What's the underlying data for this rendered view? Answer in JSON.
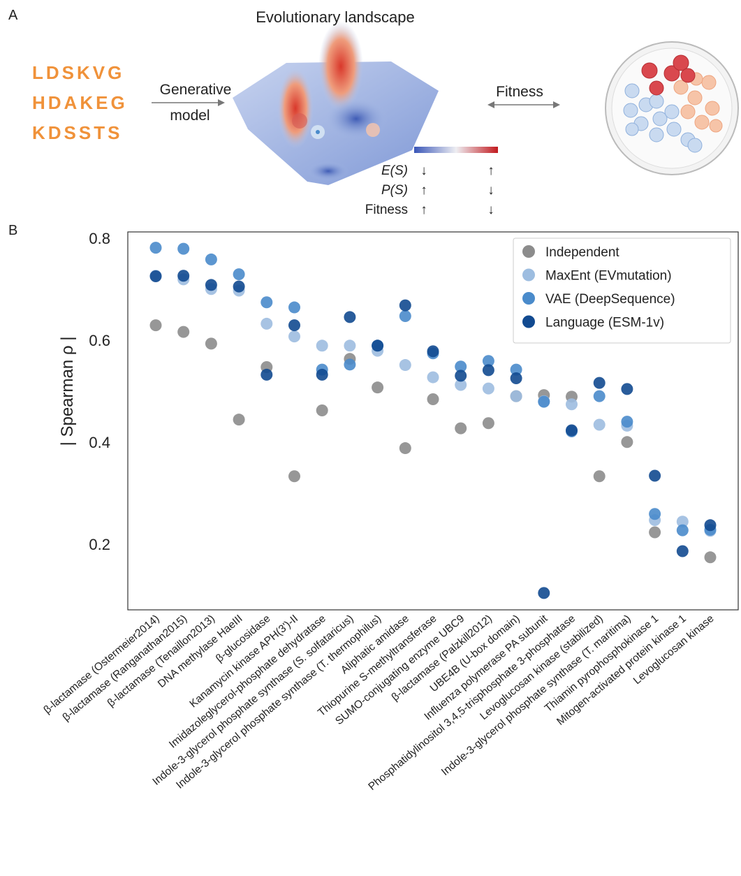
{
  "panel_labels": [
    "A",
    "B"
  ],
  "panel_a": {
    "title": "Evolutionary landscape",
    "sequences": [
      "LDSKVG",
      "HDAKEG",
      "KDSSTS"
    ],
    "model_label": [
      "Generative",
      "model"
    ],
    "fitness_label": "Fitness",
    "colorbar_rows": [
      {
        "label": "E(S)",
        "low": "↓",
        "high": "↑"
      },
      {
        "label": "P(S)",
        "low": "↑",
        "high": "↓"
      },
      {
        "label": "Fitness",
        "low": "↑",
        "high": "↓"
      }
    ]
  },
  "chart_data": {
    "type": "scatter",
    "ylabel": "| Spearman ρ |",
    "categories": [
      "β-lactamase (Ostermeier2014)",
      "β-lactamase (Ranganathan2015)",
      "β-lactamase (Tenaillon2013)",
      "DNA methylase HaeIII",
      "β-glucosidase",
      "Kanamycin kinase APH(3')-II",
      "Imidazoleglycerol-phosphate dehydratase",
      "Indole-3-glycerol phosphate synthase (S. solfataricus)",
      "Indole-3-glycerol phosphate synthase (T. thermophilus)",
      "Aliphatic amidase",
      "Thiopurine S-methyltransferase",
      "SUMO-conjugating enzyme UBC9",
      "β-lactamase (Palzkill2012)",
      "UBE4B (U-box domain)",
      "Influenza polymerase PA subunit",
      "Phosphatidylinositol 3,4,5-trisphosphate 3-phosphatase",
      "Levoglucosan kinase (stabilized)",
      "Indole-3-glycerol phosphate synthase (T. maritima)",
      "Thiamin pyrophosphokinase 1",
      "Mitogen-activated protein kinase 1",
      "Levoglucosan kinase"
    ],
    "series": [
      {
        "name": "Independent",
        "color": "#8c8c8c",
        "values": [
          0.629,
          0.616,
          0.593,
          0.444,
          0.547,
          0.333,
          0.462,
          0.563,
          0.507,
          0.388,
          0.484,
          0.427,
          0.437,
          0.49,
          0.492,
          0.489,
          0.333,
          0.4,
          0.223,
          null,
          0.174
        ]
      },
      {
        "name": "MaxEnt (EVmutation)",
        "color": "#9dbde0",
        "values": [
          0.726,
          0.719,
          0.7,
          0.697,
          0.632,
          0.607,
          0.589,
          0.589,
          0.579,
          0.551,
          0.527,
          0.512,
          0.505,
          0.49,
          0.48,
          0.474,
          0.434,
          0.432,
          0.247,
          0.244,
          0.226
        ]
      },
      {
        "name": "VAE (DeepSequence)",
        "color": "#4a8bcb",
        "values": [
          0.781,
          0.779,
          0.758,
          0.729,
          0.674,
          0.664,
          0.542,
          0.552,
          0.589,
          0.647,
          0.574,
          0.548,
          0.559,
          0.542,
          0.479,
          0.421,
          0.49,
          0.44,
          0.259,
          0.227,
          0.228
        ]
      },
      {
        "name": "Language (ESM-1v)",
        "color": "#124a90",
        "values": [
          0.725,
          0.726,
          0.708,
          0.705,
          0.532,
          0.629,
          0.532,
          0.645,
          0.589,
          0.668,
          0.578,
          0.53,
          0.541,
          0.525,
          0.104,
          0.423,
          0.516,
          0.504,
          0.334,
          0.186,
          0.237
        ]
      }
    ],
    "ylim": [
      0.071,
      0.812
    ],
    "yticks": [
      0.2,
      0.4,
      0.6,
      0.8
    ],
    "grid": false,
    "legend": "upper right"
  }
}
